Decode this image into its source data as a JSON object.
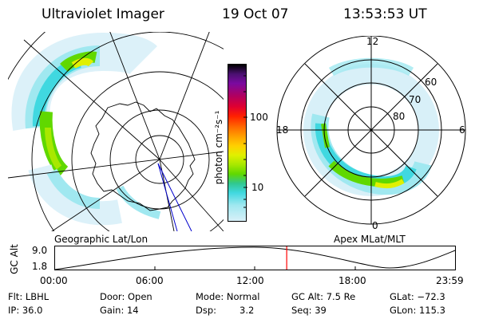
{
  "header": {
    "instrument": "Ultraviolet Imager",
    "date": "19 Oct 07",
    "time": "13:53:53 UT"
  },
  "geo_panel": {
    "label": "Geographic Lat/Lon"
  },
  "apex_panel": {
    "label": "Apex MLat/MLT",
    "mlt_labels": [
      "12",
      "18",
      "6",
      "0"
    ],
    "lat_labels": [
      "60",
      "70",
      "80"
    ]
  },
  "colorbar": {
    "unit_label": "photon cm⁻²s⁻¹",
    "tick_labels": [
      "100",
      "10"
    ],
    "colors": [
      "#000000",
      "#4a1070",
      "#7a0aa0",
      "#b00060",
      "#e00030",
      "#ff2000",
      "#ff6a00",
      "#ffa000",
      "#ffd000",
      "#e0f000",
      "#a8e800",
      "#60d800",
      "#30c890",
      "#40d8e0",
      "#a0e8f0",
      "#d8f0f8"
    ]
  },
  "altitude_plot": {
    "ylabel": "GC Alt",
    "y_ticks": [
      "9.0",
      "1.8"
    ],
    "x_ticks": [
      "00:00",
      "06:00",
      "12:00",
      "18:00",
      "23:59"
    ],
    "curve_color": "#000000",
    "marker_color": "#ff0000",
    "marker_time_fraction": 0.5791
  },
  "status": {
    "filter": "Flt: LBHL",
    "ip": "IP: 36.0",
    "door": "Door: Open",
    "gain": "Gain: 14",
    "mode": "Mode: Normal",
    "dsp": "Dsp:",
    "dsp_value": "3.2",
    "gc_alt": "GC Alt: 7.5 Re",
    "seq": "Seq: 39",
    "glat": "GLat: −72.3",
    "glon": "GLon: 115.3"
  }
}
